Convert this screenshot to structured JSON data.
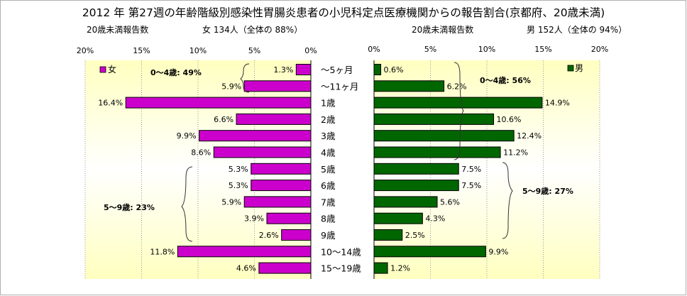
{
  "title": "2012 年 第27週の年齢階級別感染性胃腸炎患者の小児科定点医療機関からの報告割合(京都府、20歳未満)",
  "left_header": {
    "label": "20歳未満報告数",
    "summary": "女 134人（全体の 88%）"
  },
  "right_header": {
    "label": "20歳未満報告数",
    "summary": "男 152人（全体の 94%）"
  },
  "annotations": {
    "female_0_4": "0～4歳: 49%",
    "female_5_9": "5～9歳: 23%",
    "male_0_4": "0～4歳: 56%",
    "male_5_9": "5～9歳: 27%"
  },
  "colors": {
    "female": "#CC00CC",
    "male": "#006600",
    "plot_gradient_edge": "#FFFFC0",
    "plot_gradient_center": "#FFFFFF"
  },
  "chart_data": {
    "type": "bar",
    "orientation": "horizontal",
    "layout": "population-pyramid",
    "categories": [
      "～5ヶ月",
      "～11ヶ月",
      "1歳",
      "2歳",
      "3歳",
      "4歳",
      "5歳",
      "6歳",
      "7歳",
      "8歳",
      "9歳",
      "10～14歳",
      "15～19歳"
    ],
    "series": [
      {
        "name": "女",
        "values": [
          1.3,
          5.9,
          16.4,
          6.6,
          9.9,
          8.6,
          5.3,
          5.3,
          5.9,
          3.9,
          2.6,
          11.8,
          4.6
        ]
      },
      {
        "name": "男",
        "values": [
          0.6,
          6.2,
          14.9,
          10.6,
          12.4,
          11.2,
          7.5,
          7.5,
          5.6,
          4.3,
          2.5,
          9.9,
          1.2
        ]
      }
    ],
    "value_labels": {
      "female": [
        "1.3%",
        "5.9%",
        "16.4%",
        "6.6%",
        "9.9%",
        "8.6%",
        "5.3%",
        "5.3%",
        "5.9%",
        "3.9%",
        "2.6%",
        "11.8%",
        "4.6%"
      ],
      "male": [
        "0.6%",
        "6.2%",
        "14.9%",
        "10.6%",
        "12.4%",
        "11.2%",
        "7.5%",
        "7.5%",
        "5.6%",
        "4.3%",
        "2.5%",
        "9.9%",
        "1.2%"
      ]
    },
    "xlim": [
      0,
      20
    ],
    "ticks": [
      0,
      5,
      10,
      15,
      20
    ],
    "tick_labels": [
      "0%",
      "5%",
      "10%",
      "15%",
      "20%"
    ],
    "legend_placement": "top-left (female), top-right (male)",
    "grid": "vertical dotted lines at 5% intervals"
  }
}
